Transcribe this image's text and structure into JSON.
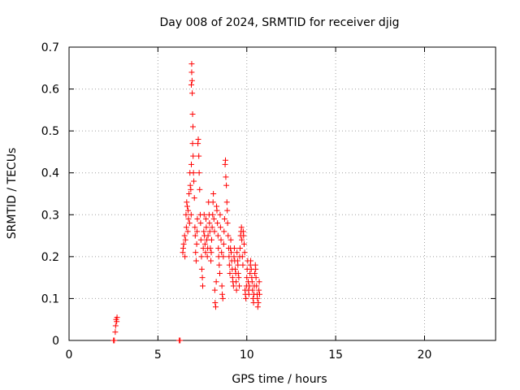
{
  "chart_data": {
    "type": "scatter",
    "title": "Day 008 of 2024, SRMTID for receiver djig",
    "xlabel": "GPS time / hours",
    "ylabel": "SRMTID / TECUs",
    "xlim": [
      0,
      24
    ],
    "ylim": [
      0,
      0.7
    ],
    "xticks": [
      0,
      5,
      10,
      15,
      20
    ],
    "yticks": [
      0,
      0.1,
      0.2,
      0.3,
      0.4,
      0.5,
      0.6,
      0.7
    ],
    "xtick_labels": [
      "0",
      "5",
      "10",
      "15",
      "20"
    ],
    "ytick_labels": [
      "0",
      "0.1",
      "0.2",
      "0.3",
      "0.4",
      "0.5",
      "0.6",
      "0.7"
    ],
    "grid": true,
    "marker": "+",
    "color": "#ff0000",
    "series": [
      {
        "name": "SRMTID",
        "points": [
          [
            2.5,
            0.0
          ],
          [
            2.55,
            0.0
          ],
          [
            2.6,
            0.02
          ],
          [
            2.62,
            0.035
          ],
          [
            2.65,
            0.05
          ],
          [
            2.7,
            0.055
          ],
          [
            2.68,
            0.045
          ],
          [
            6.2,
            0.0
          ],
          [
            6.25,
            0.0
          ],
          [
            6.4,
            0.21
          ],
          [
            6.42,
            0.22
          ],
          [
            6.45,
            0.23
          ],
          [
            6.5,
            0.25
          ],
          [
            6.52,
            0.2
          ],
          [
            6.55,
            0.24
          ],
          [
            6.58,
            0.3
          ],
          [
            6.6,
            0.27
          ],
          [
            6.62,
            0.33
          ],
          [
            6.65,
            0.32
          ],
          [
            6.68,
            0.26
          ],
          [
            6.7,
            0.31
          ],
          [
            6.72,
            0.29
          ],
          [
            6.75,
            0.35
          ],
          [
            6.78,
            0.28
          ],
          [
            6.8,
            0.4
          ],
          [
            6.82,
            0.37
          ],
          [
            6.85,
            0.36
          ],
          [
            6.87,
            0.3
          ],
          [
            6.88,
            0.42
          ],
          [
            6.9,
            0.66
          ],
          [
            6.9,
            0.64
          ],
          [
            6.92,
            0.62
          ],
          [
            6.88,
            0.61
          ],
          [
            6.93,
            0.59
          ],
          [
            6.95,
            0.54
          ],
          [
            6.97,
            0.51
          ],
          [
            6.95,
            0.47
          ],
          [
            6.98,
            0.44
          ],
          [
            7.0,
            0.4
          ],
          [
            7.02,
            0.38
          ],
          [
            7.05,
            0.34
          ],
          [
            7.08,
            0.27
          ],
          [
            7.1,
            0.25
          ],
          [
            7.12,
            0.21
          ],
          [
            7.15,
            0.19
          ],
          [
            7.18,
            0.23
          ],
          [
            7.2,
            0.26
          ],
          [
            7.22,
            0.29
          ],
          [
            7.25,
            0.47
          ],
          [
            7.27,
            0.48
          ],
          [
            7.3,
            0.44
          ],
          [
            7.32,
            0.4
          ],
          [
            7.35,
            0.36
          ],
          [
            7.38,
            0.3
          ],
          [
            7.4,
            0.28
          ],
          [
            7.42,
            0.24
          ],
          [
            7.45,
            0.2
          ],
          [
            7.47,
            0.17
          ],
          [
            7.5,
            0.15
          ],
          [
            7.52,
            0.13
          ],
          [
            7.55,
            0.22
          ],
          [
            7.58,
            0.26
          ],
          [
            7.6,
            0.3
          ],
          [
            7.62,
            0.25
          ],
          [
            7.65,
            0.23
          ],
          [
            7.68,
            0.21
          ],
          [
            7.7,
            0.29
          ],
          [
            7.72,
            0.27
          ],
          [
            7.75,
            0.24
          ],
          [
            7.78,
            0.2
          ],
          [
            7.8,
            0.22
          ],
          [
            7.82,
            0.25
          ],
          [
            7.85,
            0.33
          ],
          [
            7.88,
            0.3
          ],
          [
            7.9,
            0.28
          ],
          [
            7.92,
            0.26
          ],
          [
            7.95,
            0.22
          ],
          [
            7.98,
            0.19
          ],
          [
            8.0,
            0.21
          ],
          [
            8.02,
            0.24
          ],
          [
            8.05,
            0.27
          ],
          [
            8.08,
            0.3
          ],
          [
            8.1,
            0.33
          ],
          [
            8.12,
            0.35
          ],
          [
            8.15,
            0.29
          ],
          [
            8.18,
            0.26
          ],
          [
            8.2,
            0.12
          ],
          [
            8.22,
            0.09
          ],
          [
            8.25,
            0.08
          ],
          [
            8.28,
            0.14
          ],
          [
            8.3,
            0.32
          ],
          [
            8.32,
            0.31
          ],
          [
            8.35,
            0.28
          ],
          [
            8.38,
            0.25
          ],
          [
            8.4,
            0.22
          ],
          [
            8.42,
            0.2
          ],
          [
            8.45,
            0.18
          ],
          [
            8.48,
            0.16
          ],
          [
            8.5,
            0.3
          ],
          [
            8.52,
            0.27
          ],
          [
            8.55,
            0.24
          ],
          [
            8.58,
            0.21
          ],
          [
            8.6,
            0.13
          ],
          [
            8.62,
            0.11
          ],
          [
            8.65,
            0.1
          ],
          [
            8.68,
            0.2
          ],
          [
            8.7,
            0.23
          ],
          [
            8.72,
            0.26
          ],
          [
            8.75,
            0.29
          ],
          [
            8.78,
            0.42
          ],
          [
            8.8,
            0.43
          ],
          [
            8.82,
            0.39
          ],
          [
            8.85,
            0.37
          ],
          [
            8.88,
            0.33
          ],
          [
            8.9,
            0.31
          ],
          [
            8.92,
            0.28
          ],
          [
            8.95,
            0.25
          ],
          [
            8.98,
            0.22
          ],
          [
            9.0,
            0.2
          ],
          [
            9.02,
            0.18
          ],
          [
            9.05,
            0.16
          ],
          [
            9.08,
            0.22
          ],
          [
            9.1,
            0.24
          ],
          [
            9.12,
            0.21
          ],
          [
            9.15,
            0.19
          ],
          [
            9.18,
            0.17
          ],
          [
            9.2,
            0.15
          ],
          [
            9.22,
            0.14
          ],
          [
            9.25,
            0.13
          ],
          [
            9.28,
            0.2
          ],
          [
            9.3,
            0.22
          ],
          [
            9.32,
            0.19
          ],
          [
            9.35,
            0.17
          ],
          [
            9.38,
            0.16
          ],
          [
            9.4,
            0.14
          ],
          [
            9.42,
            0.12
          ],
          [
            9.45,
            0.21
          ],
          [
            9.48,
            0.19
          ],
          [
            9.5,
            0.18
          ],
          [
            9.52,
            0.16
          ],
          [
            9.55,
            0.15
          ],
          [
            9.58,
            0.13
          ],
          [
            9.6,
            0.2
          ],
          [
            9.62,
            0.22
          ],
          [
            9.65,
            0.25
          ],
          [
            9.68,
            0.26
          ],
          [
            9.7,
            0.27
          ],
          [
            9.72,
            0.24
          ],
          [
            9.75,
            0.2
          ],
          [
            9.78,
            0.18
          ],
          [
            9.8,
            0.26
          ],
          [
            9.82,
            0.25
          ],
          [
            9.85,
            0.23
          ],
          [
            9.88,
            0.21
          ],
          [
            9.9,
            0.12
          ],
          [
            9.92,
            0.11
          ],
          [
            9.95,
            0.1
          ],
          [
            9.98,
            0.13
          ],
          [
            10.0,
            0.15
          ],
          [
            10.02,
            0.17
          ],
          [
            10.05,
            0.19
          ],
          [
            10.08,
            0.14
          ],
          [
            10.1,
            0.12
          ],
          [
            10.12,
            0.11
          ],
          [
            10.15,
            0.13
          ],
          [
            10.18,
            0.16
          ],
          [
            10.2,
            0.18
          ],
          [
            10.22,
            0.19
          ],
          [
            10.25,
            0.17
          ],
          [
            10.28,
            0.15
          ],
          [
            10.3,
            0.14
          ],
          [
            10.32,
            0.12
          ],
          [
            10.35,
            0.1
          ],
          [
            10.38,
            0.09
          ],
          [
            10.4,
            0.11
          ],
          [
            10.42,
            0.13
          ],
          [
            10.45,
            0.16
          ],
          [
            10.48,
            0.18
          ],
          [
            10.5,
            0.17
          ],
          [
            10.52,
            0.15
          ],
          [
            10.55,
            0.13
          ],
          [
            10.58,
            0.11
          ],
          [
            10.6,
            0.1
          ],
          [
            10.62,
            0.08
          ],
          [
            10.65,
            0.09
          ],
          [
            10.68,
            0.12
          ],
          [
            10.7,
            0.14
          ],
          [
            10.72,
            0.11
          ]
        ]
      }
    ]
  }
}
